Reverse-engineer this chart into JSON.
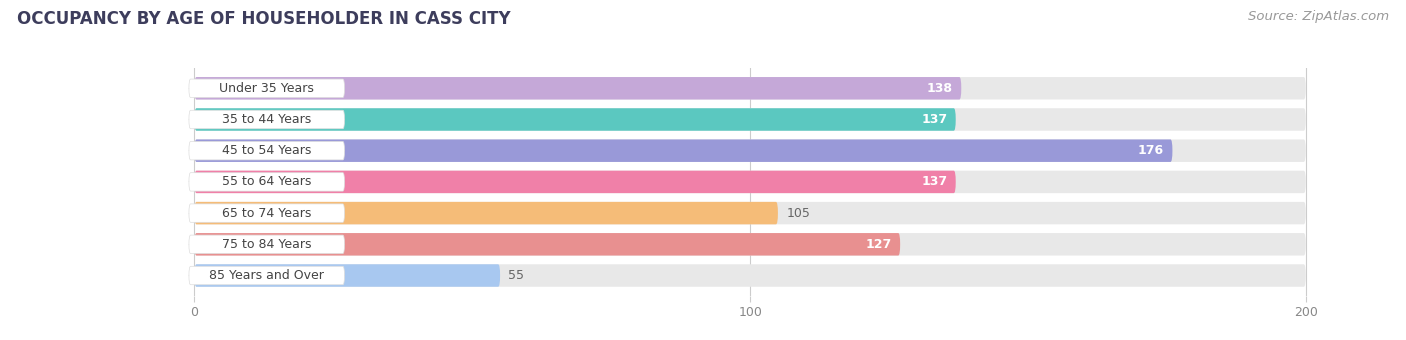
{
  "title": "OCCUPANCY BY AGE OF HOUSEHOLDER IN CASS CITY",
  "source": "Source: ZipAtlas.com",
  "categories": [
    "Under 35 Years",
    "35 to 44 Years",
    "45 to 54 Years",
    "55 to 64 Years",
    "65 to 74 Years",
    "75 to 84 Years",
    "85 Years and Over"
  ],
  "values": [
    138,
    137,
    176,
    137,
    105,
    127,
    55
  ],
  "bar_colors": [
    "#c5a8d8",
    "#5bc8c0",
    "#9999d8",
    "#f080a8",
    "#f5bc78",
    "#e89090",
    "#a8c8f0"
  ],
  "xlim": [
    -35,
    215
  ],
  "data_max": 200,
  "xticks": [
    0,
    100,
    200
  ],
  "title_fontsize": 12,
  "source_fontsize": 9.5,
  "bar_label_fontsize": 9,
  "value_label_fontsize": 9,
  "bar_height": 0.72,
  "bg_color": "white",
  "bar_bg_color": "#e8e8e8",
  "label_bg_color": "white",
  "grid_color": "#cccccc",
  "title_color": "#3d3d5c",
  "source_color": "#999999",
  "tick_color": "#888888"
}
